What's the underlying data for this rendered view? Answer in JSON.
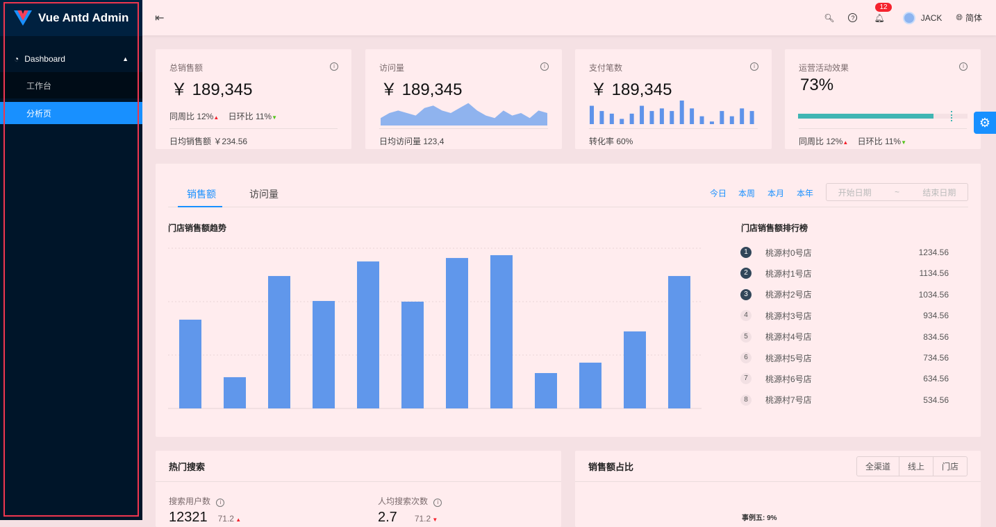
{
  "sidebar": {
    "app_title": "Vue Antd Admin",
    "menu": {
      "label": "Dashboard",
      "items": [
        {
          "label": "工作台"
        },
        {
          "label": "分析页"
        }
      ]
    }
  },
  "header": {
    "notification_count": "12",
    "user": "JACK",
    "language": "简体"
  },
  "stats": [
    {
      "title": "总销售额",
      "value": "￥ 189,345",
      "wow_label": "同周比 12%",
      "dod_label": "日环比 11%",
      "footer": "日均销售额 ￥234.56"
    },
    {
      "title": "访问量",
      "value": "￥ 189,345",
      "footer": "日均访问量 123,4",
      "mini_area": [
        3,
        5,
        6,
        5,
        4,
        7,
        8,
        6,
        5,
        7,
        9,
        6,
        4,
        3,
        6,
        4,
        5,
        3,
        6,
        5
      ]
    },
    {
      "title": "支付笔数",
      "value": "￥ 189,345",
      "footer": "转化率 60%",
      "mini_bars": [
        7,
        5,
        4,
        2,
        4,
        7,
        5,
        6,
        5,
        9,
        6,
        3,
        1,
        5,
        3,
        6,
        5
      ]
    },
    {
      "title": "运营活动效果",
      "value": "73%",
      "progress_percent": 80,
      "target_percent": 90,
      "progress_color": "#3fb5b3",
      "wow_label": "同周比 12%",
      "dod_label": "日环比 11%"
    }
  ],
  "sales": {
    "tabs": [
      "销售额",
      "访问量"
    ],
    "active_tab": 0,
    "ranges": [
      "今日",
      "本周",
      "本月",
      "本年"
    ],
    "start_placeholder": "开始日期",
    "end_placeholder": "结束日期",
    "date_sep": "~",
    "ranking_title": "门店销售额排行榜",
    "ranking": [
      {
        "rank": "1",
        "name": "桃源村0号店",
        "amount": "1234.56"
      },
      {
        "rank": "2",
        "name": "桃源村1号店",
        "amount": "1134.56"
      },
      {
        "rank": "3",
        "name": "桃源村2号店",
        "amount": "1034.56"
      },
      {
        "rank": "4",
        "name": "桃源村3号店",
        "amount": "934.56"
      },
      {
        "rank": "5",
        "name": "桃源村4号店",
        "amount": "834.56"
      },
      {
        "rank": "6",
        "name": "桃源村5号店",
        "amount": "734.56"
      },
      {
        "rank": "7",
        "name": "桃源村6号店",
        "amount": "634.56"
      },
      {
        "rank": "8",
        "name": "桃源村7号店",
        "amount": "534.56"
      }
    ]
  },
  "chart_data": {
    "type": "bar",
    "title": "门店销售额趋势",
    "values": [
      665,
      234,
      992,
      805,
      1101,
      800,
      1127,
      1148,
      265,
      343,
      577,
      992
    ],
    "ylim": [
      0,
      1200
    ],
    "grid": true,
    "color": "#6097eb"
  },
  "hot_search": {
    "title": "热门搜索",
    "metrics": [
      {
        "label": "搜索用户数",
        "value": "12321",
        "change": "71.2",
        "trend": "up"
      },
      {
        "label": "人均搜索次数",
        "value": "2.7",
        "change": "71.2",
        "trend": "down"
      }
    ]
  },
  "share": {
    "title": "销售额占比",
    "segments": [
      "全渠道",
      "线上",
      "门店"
    ],
    "pie_label": "事例五: 9%"
  }
}
